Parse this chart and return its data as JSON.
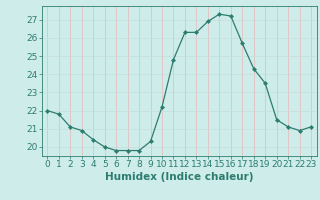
{
  "x": [
    0,
    1,
    2,
    3,
    4,
    5,
    6,
    7,
    8,
    9,
    10,
    11,
    12,
    13,
    14,
    15,
    16,
    17,
    18,
    19,
    20,
    21,
    22,
    23
  ],
  "y": [
    22.0,
    21.8,
    21.1,
    20.9,
    20.4,
    20.0,
    19.8,
    19.8,
    19.8,
    20.3,
    22.2,
    24.8,
    26.3,
    26.3,
    26.9,
    27.3,
    27.2,
    25.7,
    24.3,
    23.5,
    21.5,
    21.1,
    20.9,
    21.1
  ],
  "line_color": "#2d7d6f",
  "marker": "D",
  "marker_size": 2.0,
  "bg_color": "#ceecea",
  "grid_color_v": "#e8b8b8",
  "grid_color_h": "#c8dedd",
  "xlabel": "Humidex (Indice chaleur)",
  "ylim": [
    19.5,
    27.75
  ],
  "xlim": [
    -0.5,
    23.5
  ],
  "yticks": [
    20,
    21,
    22,
    23,
    24,
    25,
    26,
    27
  ],
  "xticks": [
    0,
    1,
    2,
    3,
    4,
    5,
    6,
    7,
    8,
    9,
    10,
    11,
    12,
    13,
    14,
    15,
    16,
    17,
    18,
    19,
    20,
    21,
    22,
    23
  ],
  "tick_label_fontsize": 6.5,
  "xlabel_fontsize": 7.5,
  "label_color": "#2d7d6f"
}
